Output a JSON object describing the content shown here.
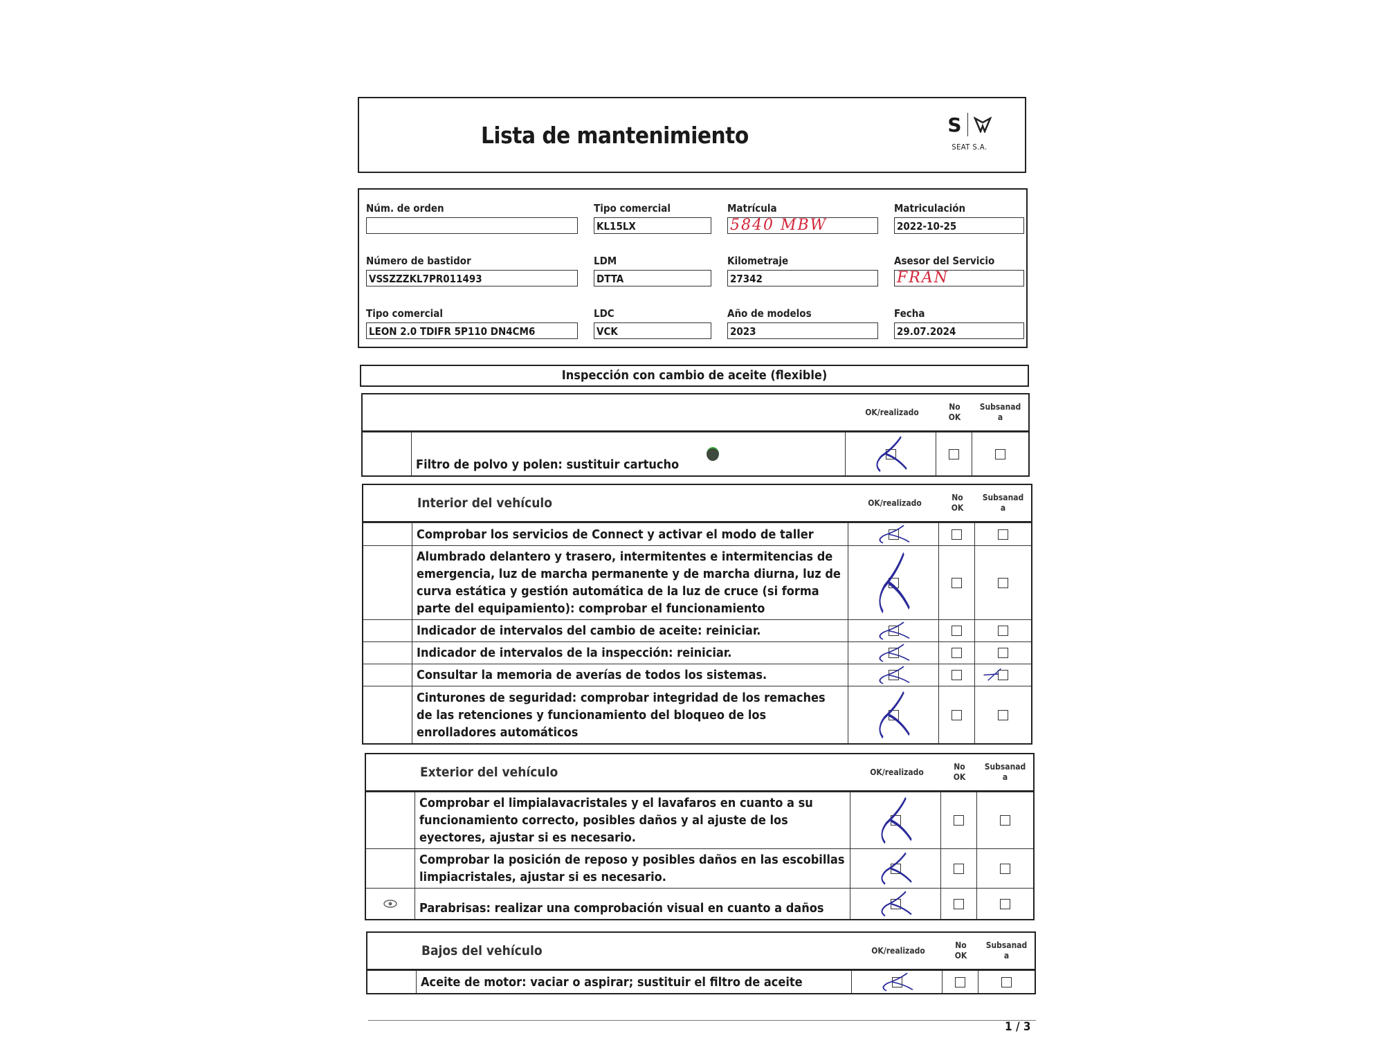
{
  "header": {
    "title": "Lista de mantenimiento",
    "logo_caption": "SEAT S.A.",
    "logo_text": "S"
  },
  "info": {
    "fields": [
      {
        "label": "Núm. de orden",
        "value": "",
        "handwritten": false
      },
      {
        "label": "Tipo comercial",
        "value": "KL15LX",
        "handwritten": false
      },
      {
        "label": "Matrícula",
        "value": "5840 MBW",
        "handwritten": true
      },
      {
        "label": "Matriculación",
        "value": "2022-10-25",
        "handwritten": false
      },
      {
        "label": "Número de bastidor",
        "value": "VSSZZZKL7PR011493",
        "handwritten": false
      },
      {
        "label": "LDM",
        "value": "DTTA",
        "handwritten": false
      },
      {
        "label": "Kilometraje",
        "value": "27342",
        "handwritten": false
      },
      {
        "label": "Asesor del Servicio",
        "value": "FRAN",
        "handwritten": true
      },
      {
        "label": "Tipo comercial",
        "value": "LEON 2.0 TDIFR 5P110 DN4CM6",
        "handwritten": false
      },
      {
        "label": "LDC",
        "value": "VCK",
        "handwritten": false
      },
      {
        "label": "Año de modelos",
        "value": "2023",
        "handwritten": false
      },
      {
        "label": "Fecha",
        "value": "29.07.2024",
        "handwritten": false
      }
    ]
  },
  "banner": "Inspección con cambio de aceite (flexible)",
  "columns": {
    "ok": "OK/realizado",
    "no_ok": "No OK",
    "subsanada": "Subsanad a"
  },
  "colors": {
    "ink": "#2a2a9a",
    "handwriting_red": "#d3263a",
    "dot": "#3d4a3d"
  },
  "sections": [
    {
      "title": "",
      "items": [
        {
          "text": "Filtro de polvo y polen: sustituir cartucho",
          "icon": "green-dot-icon",
          "ok": true,
          "no_ok": false,
          "subsanada": false
        }
      ]
    },
    {
      "title": "Interior del vehículo",
      "items": [
        {
          "text": "Comprobar los servicios de Connect y activar el modo de taller",
          "ok": true,
          "no_ok": false,
          "subsanada": false
        },
        {
          "text": "Alumbrado delantero y trasero, intermitentes e intermitencias de emergencia, luz de marcha permanente y de marcha diurna, luz de curva estática y gestión automática de la luz de cruce (si forma parte del equipamiento): comprobar el funcionamiento",
          "ok": true,
          "no_ok": false,
          "subsanada": false
        },
        {
          "text": "Indicador de intervalos del cambio de aceite: reiniciar.",
          "ok": true,
          "no_ok": false,
          "subsanada": false
        },
        {
          "text": "Indicador de intervalos de la inspección: reiniciar.",
          "ok": true,
          "no_ok": false,
          "subsanada": false
        },
        {
          "text": "Consultar la memoria de averías de todos los sistemas.",
          "ok": true,
          "no_ok": false,
          "subsanada": true
        },
        {
          "text": "Cinturones de seguridad: comprobar integridad de los remaches de las retenciones y funcionamiento del bloqueo de los enrolladores automáticos",
          "ok": true,
          "no_ok": false,
          "subsanada": false
        }
      ]
    },
    {
      "title": "Exterior del vehículo",
      "items": [
        {
          "text": "Comprobar el limpialavacristales y el lavafaros en cuanto a su funcionamiento correcto, posibles daños y al ajuste de los eyectores, ajustar si es necesario.",
          "ok": true,
          "no_ok": false,
          "subsanada": false
        },
        {
          "text": "Comprobar la posición de reposo y posibles daños en las escobillas limpiacristales, ajustar si es necesario.",
          "ok": true,
          "no_ok": false,
          "subsanada": false
        },
        {
          "text": "Parabrisas: realizar una comprobación visual en cuanto a daños",
          "icon": "eye-icon",
          "ok": true,
          "no_ok": false,
          "subsanada": false
        }
      ]
    },
    {
      "title": "Bajos del vehículo",
      "items": [
        {
          "text": "Aceite de motor: vaciar o aspirar; sustituir el filtro de aceite",
          "ok": true,
          "no_ok": false,
          "subsanada": false
        }
      ]
    }
  ],
  "footer": {
    "page": "1 / 3"
  }
}
